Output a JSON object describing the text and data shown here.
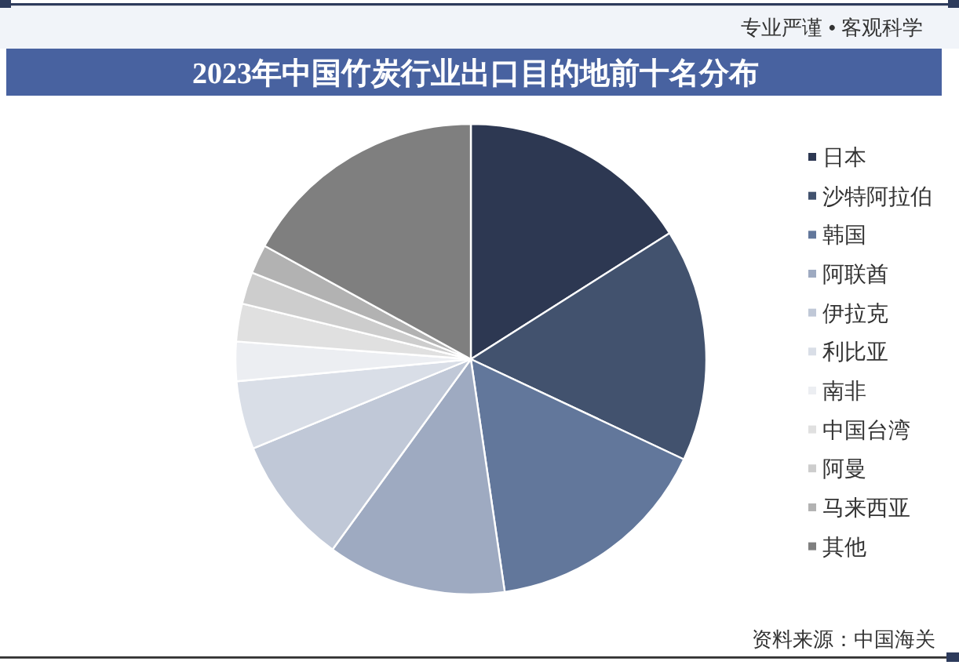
{
  "chart_data": {
    "type": "pie",
    "title": "2023年中国竹炭行业出口目的地前十名分布",
    "categories": [
      "日本",
      "沙特阿拉伯",
      "韩国",
      "阿联酋",
      "伊拉克",
      "利比亚",
      "南非",
      "中国台湾",
      "阿曼",
      "马来西亚",
      "其他"
    ],
    "values": [
      16.0,
      16.0,
      15.7,
      12.3,
      8.8,
      4.7,
      2.7,
      2.6,
      2.2,
      2.0,
      17.0
    ],
    "colors": [
      "#2d3852",
      "#42526e",
      "#62779b",
      "#9eaac1",
      "#c0c8d7",
      "#d9dee7",
      "#eceef2",
      "#e0e0e0",
      "#cdcdcd",
      "#b2b2b2",
      "#7f7f7f"
    ],
    "legend": "right",
    "annotations": [
      "专业严谨 • 客观科学",
      "资料来源：中国海关"
    ]
  }
}
